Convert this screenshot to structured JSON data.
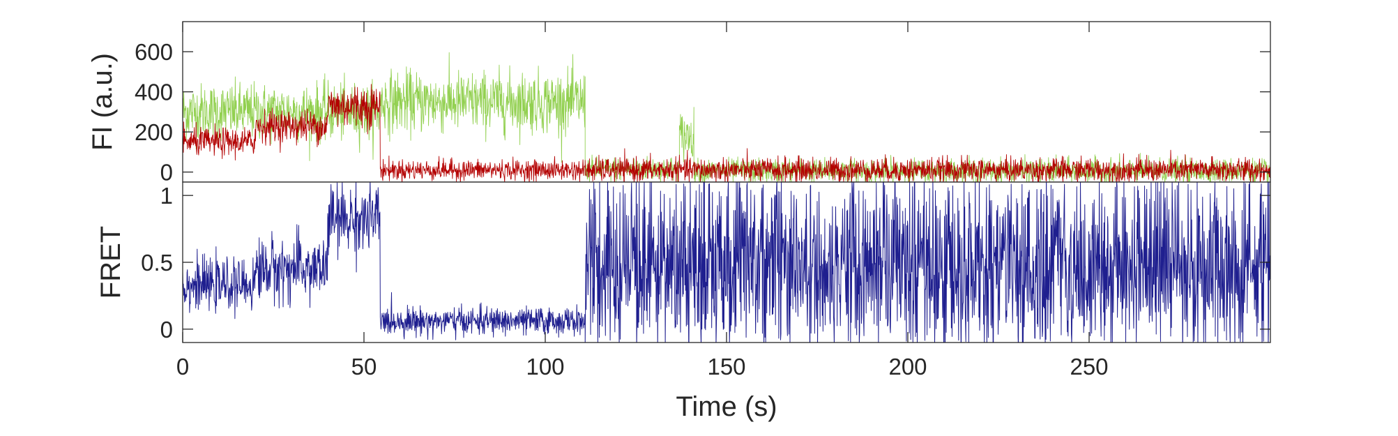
{
  "chart_data": [
    {
      "type": "line",
      "panel": "top",
      "ylabel": "FI (a.u.)",
      "xlim": [
        0,
        300
      ],
      "ylim": [
        -50,
        750
      ],
      "yticks": [
        0,
        200,
        400,
        600
      ],
      "series": [
        {
          "color": "#92d050",
          "segments": [
            {
              "x": [
                0,
                54.5
              ],
              "mean": 300,
              "noise": 70
            },
            {
              "x": [
                54.5,
                111
              ],
              "mean": 350,
              "noise": 75
            },
            {
              "x": [
                111,
                137
              ],
              "mean": 15,
              "noise": 30
            },
            {
              "x": [
                137,
                141
              ],
              "mean": 180,
              "noise": 60
            },
            {
              "x": [
                141,
                300
              ],
              "mean": 5,
              "noise": 30
            }
          ]
        },
        {
          "color": "#b30000",
          "segments": [
            {
              "x": [
                0,
                20
              ],
              "mean": 150,
              "noise": 35
            },
            {
              "x": [
                20,
                40
              ],
              "mean": 230,
              "noise": 40
            },
            {
              "x": [
                40,
                54.5
              ],
              "mean": 330,
              "noise": 55
            },
            {
              "x": [
                54.5,
                111
              ],
              "mean": 10,
              "noise": 25
            },
            {
              "x": [
                111,
                300
              ],
              "mean": 10,
              "noise": 30
            }
          ]
        }
      ]
    },
    {
      "type": "line",
      "panel": "bottom",
      "xlabel": "Time (s)",
      "ylabel": "FRET",
      "xlim": [
        0,
        300
      ],
      "ylim": [
        -0.1,
        1.1
      ],
      "xticks": [
        0,
        50,
        100,
        150,
        200,
        250
      ],
      "yticks": [
        0,
        0.5,
        1
      ],
      "series": [
        {
          "color": "#1f1f8f",
          "segments": [
            {
              "x": [
                0,
                20
              ],
              "mean": 0.33,
              "noise": 0.09
            },
            {
              "x": [
                20,
                40
              ],
              "mean": 0.45,
              "noise": 0.12
            },
            {
              "x": [
                40,
                54.5
              ],
              "mean": 0.82,
              "noise": 0.13
            },
            {
              "x": [
                54.5,
                111
              ],
              "mean": 0.06,
              "noise": 0.05
            },
            {
              "x": [
                111,
                300
              ],
              "mean": 0.45,
              "noise": 0.6
            }
          ]
        }
      ]
    }
  ]
}
